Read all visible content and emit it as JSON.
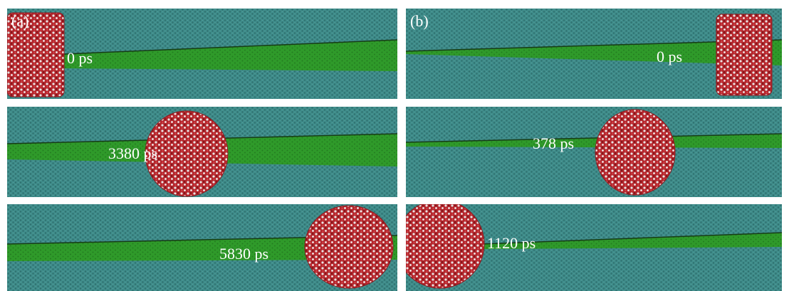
{
  "panels": [
    {
      "label": "(a)",
      "frames": [
        {
          "time": "0 ps"
        },
        {
          "time": "3380 ps"
        },
        {
          "time": "5830 ps"
        }
      ]
    },
    {
      "label": "(b)",
      "frames": [
        {
          "time": "0 ps"
        },
        {
          "time": "378 ps"
        },
        {
          "time": "1120 ps"
        }
      ]
    }
  ]
}
